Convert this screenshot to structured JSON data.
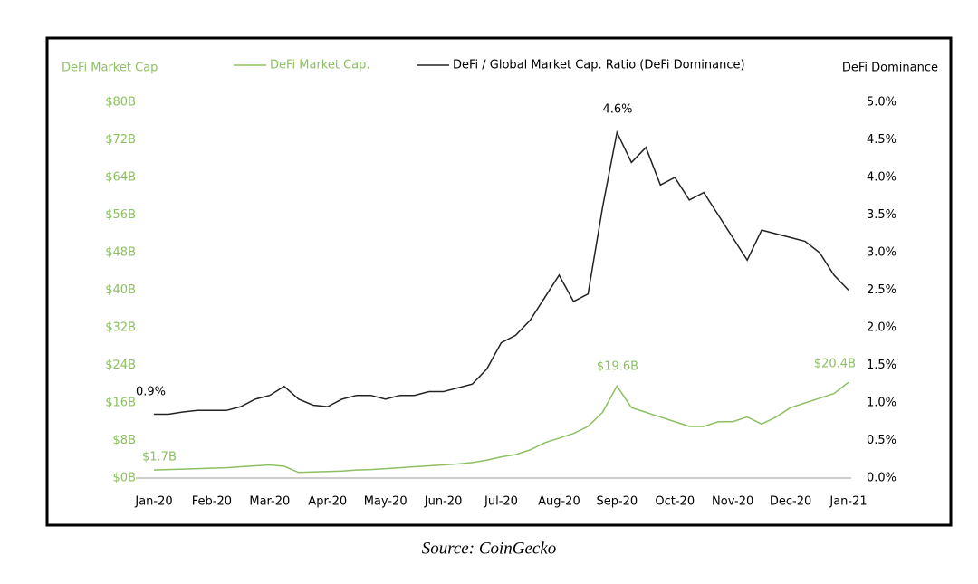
{
  "chart_data": {
    "type": "line",
    "source": "Source: CoinGecko",
    "y_axis_label": "DeFi Market Cap",
    "y2_axis_label": "DeFi Dominance",
    "categories": [
      "Jan-20",
      null,
      null,
      null,
      "Feb-20",
      null,
      null,
      null,
      "Mar-20",
      null,
      null,
      null,
      "Apr-20",
      null,
      null,
      null,
      "May-20",
      null,
      null,
      null,
      "Jun-20",
      null,
      null,
      null,
      "Jul-20",
      null,
      null,
      null,
      "Aug-20",
      null,
      null,
      null,
      "Sep-20",
      null,
      null,
      null,
      "Oct-20",
      null,
      null,
      null,
      "Nov-20",
      null,
      null,
      null,
      "Dec-20",
      null,
      null,
      null,
      "Jan-21"
    ],
    "series": [
      {
        "name": "DeFi Market Cap.",
        "color": "#8dc063",
        "axis": "y",
        "values": [
          1.7,
          1.8,
          1.9,
          2.0,
          2.1,
          2.2,
          2.4,
          2.6,
          2.8,
          2.5,
          1.2,
          1.3,
          1.4,
          1.5,
          1.7,
          1.8,
          2.0,
          2.2,
          2.4,
          2.6,
          2.8,
          3.0,
          3.3,
          3.8,
          4.5,
          5.0,
          6.0,
          7.5,
          8.5,
          9.5,
          11,
          14,
          19.6,
          15,
          14,
          13,
          12,
          11,
          11,
          12,
          12,
          13,
          11.5,
          13,
          15,
          16,
          17,
          18,
          20.4
        ]
      },
      {
        "name": "DeFi / Global Market Cap. Ratio (DeFi Dominance)",
        "color": "#222222",
        "axis": "y2",
        "values": [
          0.85,
          0.85,
          0.88,
          0.9,
          0.9,
          0.9,
          0.95,
          1.05,
          1.1,
          1.22,
          1.05,
          0.97,
          0.95,
          1.05,
          1.1,
          1.1,
          1.05,
          1.1,
          1.1,
          1.15,
          1.15,
          1.2,
          1.25,
          1.45,
          1.8,
          1.9,
          2.1,
          2.4,
          2.7,
          2.35,
          2.45,
          3.6,
          4.6,
          4.2,
          4.4,
          3.9,
          4.0,
          3.7,
          3.8,
          3.5,
          3.2,
          2.9,
          3.3,
          3.25,
          3.2,
          3.15,
          3.0,
          2.7,
          2.5
        ]
      }
    ],
    "annotations": [
      "$1.7B",
      "0.9%",
      "$19.6B",
      "4.6%",
      "$20.4B"
    ],
    "ylim": [
      0,
      80
    ],
    "yticks": [
      {
        "value": 0,
        "label": "$0B"
      },
      {
        "value": 8,
        "label": "$8B"
      },
      {
        "value": 16,
        "label": "$16B"
      },
      {
        "value": 24,
        "label": "$24B"
      },
      {
        "value": 32,
        "label": "$32B"
      },
      {
        "value": 40,
        "label": "$40B"
      },
      {
        "value": 48,
        "label": "$48B"
      },
      {
        "value": 56,
        "label": "$56B"
      },
      {
        "value": 64,
        "label": "$64B"
      },
      {
        "value": 72,
        "label": "$72B"
      },
      {
        "value": 80,
        "label": "$80B"
      }
    ],
    "y2lim": [
      0,
      5
    ],
    "y2ticks": [
      {
        "value": 0,
        "label": "0.0%"
      },
      {
        "value": 0.5,
        "label": "0.5%"
      },
      {
        "value": 1,
        "label": "1.0%"
      },
      {
        "value": 1.5,
        "label": "1.5%"
      },
      {
        "value": 2,
        "label": "2.0%"
      },
      {
        "value": 2.5,
        "label": "2.5%"
      },
      {
        "value": 3,
        "label": "3.0%"
      },
      {
        "value": 3.5,
        "label": "3.5%"
      },
      {
        "value": 4,
        "label": "4.0%"
      },
      {
        "value": 4.5,
        "label": "4.5%"
      },
      {
        "value": 5,
        "label": "5.0%"
      }
    ],
    "grid": false
  }
}
